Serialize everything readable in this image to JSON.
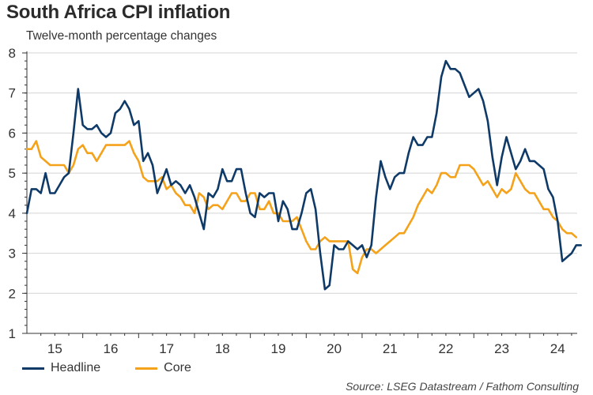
{
  "chart_data": {
    "type": "line",
    "title": "South Africa CPI inflation",
    "subtitle": "Twelve-month percentage changes",
    "xlabel": "",
    "ylabel": "",
    "ylim": [
      1,
      8
    ],
    "yticks": [
      1,
      2,
      3,
      4,
      5,
      6,
      7,
      8
    ],
    "xlim": [
      2015.0,
      2024.85
    ],
    "xtick_labels": [
      "15",
      "16",
      "17",
      "18",
      "19",
      "20",
      "21",
      "22",
      "23",
      "24"
    ],
    "x_start": "2015-01",
    "frequency": "monthly",
    "grid": true,
    "legend_position": "bottom-left",
    "source": "Source: LSEG Datastream / Fathom Consulting",
    "series": [
      {
        "name": "Headline",
        "color": "#0f3a68",
        "values": [
          4.0,
          4.6,
          4.6,
          4.5,
          5.0,
          4.5,
          4.5,
          4.7,
          4.9,
          5.0,
          6.0,
          7.1,
          6.2,
          6.1,
          6.1,
          6.2,
          6.0,
          5.9,
          6.0,
          6.5,
          6.6,
          6.8,
          6.6,
          6.2,
          6.3,
          5.3,
          5.5,
          5.2,
          4.5,
          4.8,
          5.1,
          4.7,
          4.8,
          4.7,
          4.5,
          4.7,
          4.4,
          4.0,
          3.6,
          4.5,
          4.4,
          4.6,
          5.1,
          4.8,
          4.8,
          5.1,
          5.1,
          4.5,
          4.0,
          3.9,
          4.5,
          4.4,
          4.5,
          4.5,
          3.8,
          4.3,
          4.1,
          3.6,
          3.6,
          4.0,
          4.5,
          4.6,
          4.1,
          3.0,
          2.1,
          2.2,
          3.2,
          3.1,
          3.1,
          3.3,
          3.2,
          3.1,
          3.2,
          2.9,
          3.2,
          4.4,
          5.3,
          4.9,
          4.6,
          4.9,
          5.0,
          5.0,
          5.5,
          5.9,
          5.7,
          5.7,
          5.9,
          5.9,
          6.5,
          7.4,
          7.8,
          7.6,
          7.6,
          7.5,
          7.2,
          6.9,
          7.0,
          7.1,
          6.8,
          6.3,
          5.4,
          4.7,
          5.4,
          5.9,
          5.5,
          5.1,
          5.3,
          5.6,
          5.3,
          5.3,
          5.2,
          5.1,
          4.6,
          4.4,
          3.8,
          2.8,
          2.9,
          3.0,
          3.2,
          3.2
        ]
      },
      {
        "name": "Core",
        "color": "#f5a21b",
        "values": [
          5.6,
          5.6,
          5.8,
          5.4,
          5.3,
          5.2,
          5.2,
          5.2,
          5.2,
          5.0,
          5.2,
          5.6,
          5.7,
          5.5,
          5.5,
          5.3,
          5.5,
          5.7,
          5.7,
          5.7,
          5.7,
          5.7,
          5.8,
          5.5,
          5.3,
          4.9,
          4.8,
          4.8,
          4.8,
          4.9,
          4.6,
          4.7,
          4.5,
          4.4,
          4.2,
          4.2,
          4.0,
          4.5,
          4.4,
          4.1,
          4.2,
          4.2,
          4.1,
          4.3,
          4.5,
          4.5,
          4.3,
          4.3,
          4.5,
          4.5,
          4.1,
          4.1,
          4.3,
          4.0,
          4.0,
          3.8,
          3.8,
          3.8,
          3.9,
          3.6,
          3.3,
          3.1,
          3.1,
          3.3,
          3.4,
          3.3,
          3.3,
          3.3,
          3.3,
          3.3,
          2.6,
          2.5,
          2.9,
          3.1,
          3.1,
          3.0,
          3.1,
          3.2,
          3.3,
          3.4,
          3.5,
          3.5,
          3.7,
          3.9,
          4.2,
          4.4,
          4.6,
          4.5,
          4.7,
          5.0,
          5.0,
          4.9,
          4.9,
          5.2,
          5.2,
          5.2,
          5.1,
          4.9,
          4.7,
          4.8,
          4.6,
          4.4,
          4.6,
          4.5,
          4.6,
          5.0,
          4.8,
          4.6,
          4.5,
          4.5,
          4.3,
          4.1,
          4.1,
          3.9,
          3.8,
          3.6,
          3.5,
          3.5,
          3.4
        ]
      }
    ]
  }
}
